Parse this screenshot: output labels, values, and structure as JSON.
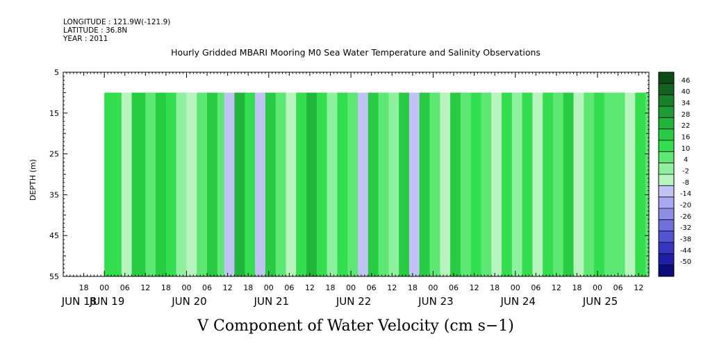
{
  "header": {
    "longitude": "LONGITUDE : 121.9W(-121.9)",
    "latitude": "LATITUDE : 36.8N",
    "year": "YEAR : 2011"
  },
  "chart_data": {
    "type": "heatmap",
    "title": "Hourly Gridded MBARI Mooring M0 Sea Water Temperature and Salinity Observations",
    "xlabel": "",
    "ylabel": "DEPTH (m)",
    "variable_label": "V Component of Water Velocity (cm s−1)",
    "y_axis": {
      "min": 5,
      "max": 55,
      "inverted": true,
      "ticks": [
        5,
        15,
        25,
        35,
        45,
        55
      ]
    },
    "x_axis": {
      "hour_ticks": [
        "18",
        "00",
        "06",
        "12",
        "18",
        "00",
        "06",
        "12",
        "18",
        "00",
        "06",
        "12",
        "18",
        "00",
        "06",
        "12",
        "18",
        "00",
        "06",
        "12",
        "18",
        "00",
        "06",
        "12",
        "18",
        "00",
        "06",
        "12"
      ],
      "day_labels": [
        "JUN 18",
        "JUN 19",
        "JUN 20",
        "JUN 21",
        "JUN 22",
        "JUN 23",
        "JUN 24",
        "JUN 25"
      ],
      "start": "2011-06-18 12:00",
      "end": "2011-06-25 15:00"
    },
    "data_extent": {
      "time_start": "2011-06-19 00:00",
      "depth_min": 10,
      "depth_max": 55
    },
    "colorbar": {
      "levels": [
        46,
        40,
        34,
        28,
        22,
        16,
        10,
        4,
        -2,
        -8,
        -14,
        -20,
        -26,
        -32,
        -38,
        -44,
        -50
      ],
      "colors": [
        "#0c4a16",
        "#11631f",
        "#178029",
        "#1e9c33",
        "#22b53b",
        "#27cc43",
        "#33de4f",
        "#5ce872",
        "#8ff09f",
        "#b8f5be",
        "#c2c2f7",
        "#a8a8f0",
        "#8d8de8",
        "#7070dd",
        "#5454d2",
        "#3636c2",
        "#1e1ea8",
        "#0b0b7a"
      ],
      "min": -50,
      "max": 46
    },
    "velocity_bands": [
      {
        "time": "2011-06-19 00:00",
        "v": 14
      },
      {
        "time": "2011-06-19 02:00",
        "v": 10
      },
      {
        "time": "2011-06-19 05:00",
        "v": -6
      },
      {
        "time": "2011-06-19 08:00",
        "v": 16
      },
      {
        "time": "2011-06-19 12:00",
        "v": 8
      },
      {
        "time": "2011-06-19 15:00",
        "v": 18
      },
      {
        "time": "2011-06-19 18:00",
        "v": 10
      },
      {
        "time": "2011-06-19 21:00",
        "v": 2
      },
      {
        "time": "2011-06-20 00:00",
        "v": -8
      },
      {
        "time": "2011-06-20 03:00",
        "v": 6
      },
      {
        "time": "2011-06-20 06:00",
        "v": 18
      },
      {
        "time": "2011-06-20 09:00",
        "v": 8
      },
      {
        "time": "2011-06-20 11:00",
        "v": -10
      },
      {
        "time": "2011-06-20 14:00",
        "v": 22
      },
      {
        "time": "2011-06-20 17:00",
        "v": 10
      },
      {
        "time": "2011-06-20 20:00",
        "v": -10
      },
      {
        "time": "2011-06-20 23:00",
        "v": 20
      },
      {
        "time": "2011-06-21 02:00",
        "v": 4
      },
      {
        "time": "2011-06-21 05:00",
        "v": -4
      },
      {
        "time": "2011-06-21 08:00",
        "v": 12
      },
      {
        "time": "2011-06-21 11:00",
        "v": 24
      },
      {
        "time": "2011-06-21 14:00",
        "v": 14
      },
      {
        "time": "2011-06-21 17:00",
        "v": -2
      },
      {
        "time": "2011-06-21 20:00",
        "v": 12
      },
      {
        "time": "2011-06-21 23:00",
        "v": 4
      },
      {
        "time": "2011-06-22 02:00",
        "v": -10
      },
      {
        "time": "2011-06-22 05:00",
        "v": 18
      },
      {
        "time": "2011-06-22 08:00",
        "v": 6
      },
      {
        "time": "2011-06-22 11:00",
        "v": 2
      },
      {
        "time": "2011-06-22 14:00",
        "v": 18
      },
      {
        "time": "2011-06-22 17:00",
        "v": -14
      },
      {
        "time": "2011-06-22 20:00",
        "v": 16
      },
      {
        "time": "2011-06-22 23:00",
        "v": 6
      },
      {
        "time": "2011-06-23 02:00",
        "v": -6
      },
      {
        "time": "2011-06-23 05:00",
        "v": 16
      },
      {
        "time": "2011-06-23 08:00",
        "v": 4
      },
      {
        "time": "2011-06-23 11:00",
        "v": 14
      },
      {
        "time": "2011-06-23 14:00",
        "v": 6
      },
      {
        "time": "2011-06-23 17:00",
        "v": -6
      },
      {
        "time": "2011-06-23 20:00",
        "v": 12
      },
      {
        "time": "2011-06-23 23:00",
        "v": 2
      },
      {
        "time": "2011-06-24 02:00",
        "v": 10
      },
      {
        "time": "2011-06-24 05:00",
        "v": -8
      },
      {
        "time": "2011-06-24 08:00",
        "v": 14
      },
      {
        "time": "2011-06-24 11:00",
        "v": 4
      },
      {
        "time": "2011-06-24 14:00",
        "v": 16
      },
      {
        "time": "2011-06-24 17:00",
        "v": -8
      },
      {
        "time": "2011-06-24 20:00",
        "v": 6
      },
      {
        "time": "2011-06-24 23:00",
        "v": 12
      },
      {
        "time": "2011-06-25 02:00",
        "v": 4
      },
      {
        "time": "2011-06-25 05:00",
        "v": 8
      },
      {
        "time": "2011-06-25 08:00",
        "v": -4
      },
      {
        "time": "2011-06-25 11:00",
        "v": 10
      },
      {
        "time": "2011-06-25 14:00",
        "v": 6
      }
    ]
  }
}
